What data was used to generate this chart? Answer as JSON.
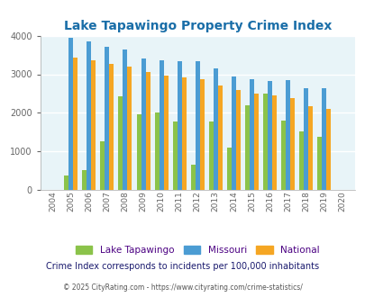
{
  "title": "Lake Tapawingo Property Crime Index",
  "years": [
    2004,
    2005,
    2006,
    2007,
    2008,
    2009,
    2010,
    2011,
    2012,
    2013,
    2014,
    2015,
    2016,
    2017,
    2018,
    2019,
    2020
  ],
  "lake_tapawingo": [
    null,
    380,
    510,
    1270,
    2440,
    1960,
    2020,
    1780,
    660,
    1780,
    1110,
    2200,
    2500,
    1800,
    1520,
    1390,
    null
  ],
  "missouri": [
    null,
    3950,
    3840,
    3720,
    3650,
    3400,
    3370,
    3340,
    3340,
    3140,
    2940,
    2870,
    2830,
    2840,
    2650,
    2640,
    null
  ],
  "national": [
    null,
    3420,
    3360,
    3270,
    3200,
    3050,
    2960,
    2930,
    2870,
    2720,
    2600,
    2490,
    2450,
    2380,
    2170,
    2100,
    null
  ],
  "lake_color": "#8bc34a",
  "missouri_color": "#4b9cd3",
  "national_color": "#f5a623",
  "background_color": "#e8f4f8",
  "title_color": "#1a6ea8",
  "ylim": [
    0,
    4000
  ],
  "yticks": [
    0,
    1000,
    2000,
    3000,
    4000
  ],
  "subtitle": "Crime Index corresponds to incidents per 100,000 inhabitants",
  "footer": "© 2025 CityRating.com - https://www.cityrating.com/crime-statistics/",
  "subtitle_color": "#1a1a6e",
  "footer_color": "#555555",
  "legend_text_color": "#4b0082",
  "all_years": [
    2004,
    2005,
    2006,
    2007,
    2008,
    2009,
    2010,
    2011,
    2012,
    2013,
    2014,
    2015,
    2016,
    2017,
    2018,
    2019,
    2020
  ]
}
